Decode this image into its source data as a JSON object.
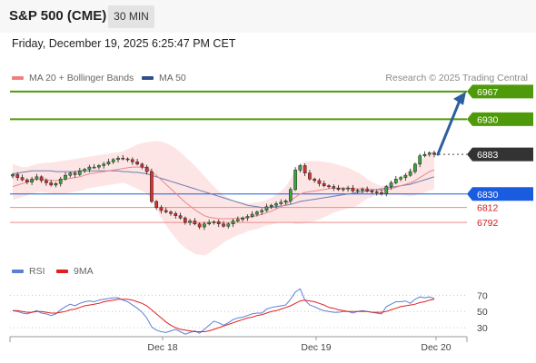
{
  "header": {
    "title": "S&P 500 (CME)",
    "timeframe": "30 MIN"
  },
  "datetime": "Friday, December 19, 2025 6:25:47 PM CET",
  "legend": [
    {
      "label": "MA 20 + Bollinger Bands",
      "color": "#f08080"
    },
    {
      "label": "MA 50",
      "color": "#2e4f8c"
    }
  ],
  "credit": "Research © 2025 Trading Central",
  "rsi_legend": [
    {
      "label": "RSI",
      "color": "#5b7fd6"
    },
    {
      "label": "9MA",
      "color": "#e02020"
    }
  ],
  "colors": {
    "resistance": "#4f9a0a",
    "support": "#1a5ce0",
    "support_line": "#ee8b8b",
    "current": "#333333",
    "up": "#3aa53a",
    "down": "#d93030",
    "arrow": "#2d5fa0"
  },
  "chart_data": [
    {
      "type": "candlestick",
      "title": "S&P 500 (CME)",
      "timeframe": "30 MIN",
      "x_ticks": [
        "Dec 18",
        "Dec 19",
        "Dec 20"
      ],
      "ylim": [
        6740,
        6985
      ],
      "price_levels": [
        {
          "value": 6967,
          "label": "6967",
          "kind": "resistance"
        },
        {
          "value": 6930,
          "label": "6930",
          "kind": "resistance"
        },
        {
          "value": 6883,
          "label": "6883",
          "kind": "current"
        },
        {
          "value": 6830,
          "label": "6830",
          "kind": "pivot"
        },
        {
          "value": 6812,
          "label": "6812",
          "kind": "support"
        },
        {
          "value": 6792,
          "label": "6792",
          "kind": "support"
        }
      ],
      "close": [
        6856,
        6852,
        6849,
        6846,
        6850,
        6853,
        6848,
        6845,
        6842,
        6844,
        6850,
        6855,
        6858,
        6856,
        6861,
        6863,
        6866,
        6866,
        6868,
        6870,
        6873,
        6876,
        6878,
        6877,
        6876,
        6873,
        6870,
        6866,
        6860,
        6820,
        6812,
        6808,
        6806,
        6804,
        6801,
        6798,
        6792,
        6794,
        6790,
        6786,
        6790,
        6792,
        6793,
        6790,
        6787,
        6790,
        6794,
        6796,
        6798,
        6800,
        6803,
        6806,
        6808,
        6813,
        6815,
        6817,
        6819,
        6821,
        6836,
        6862,
        6868,
        6858,
        6850,
        6848,
        6844,
        6841,
        6840,
        6838,
        6836,
        6837,
        6838,
        6834,
        6835,
        6836,
        6834,
        6833,
        6832,
        6830,
        6840,
        6845,
        6850,
        6852,
        6855,
        6860,
        6870,
        6881,
        6883,
        6885,
        6883
      ],
      "ma20": [
        6840,
        6842,
        6844,
        6846,
        6848,
        6850,
        6850,
        6849,
        6848,
        6848,
        6849,
        6850,
        6851,
        6852,
        6853,
        6855,
        6857,
        6858,
        6859,
        6860,
        6861,
        6862,
        6863,
        6864,
        6865,
        6866,
        6866,
        6866,
        6865,
        6860,
        6855,
        6849,
        6843,
        6837,
        6831,
        6825,
        6819,
        6814,
        6809,
        6805,
        6801,
        6799,
        6798,
        6797,
        6797,
        6797,
        6797,
        6798,
        6798,
        6799,
        6800,
        6801,
        6803,
        6805,
        6807,
        6810,
        6813,
        6816,
        6821,
        6826,
        6830,
        6832,
        6833,
        6834,
        6835,
        6836,
        6837,
        6838,
        6838,
        6838,
        6838,
        6837,
        6837,
        6837,
        6837,
        6836,
        6836,
        6835,
        6836,
        6837,
        6839,
        6841,
        6843,
        6845,
        6848,
        6852,
        6856,
        6860,
        6862
      ],
      "ma50": [
        6857,
        6858,
        6859,
        6860,
        6861,
        6861,
        6861,
        6861,
        6861,
        6860,
        6860,
        6860,
        6860,
        6860,
        6861,
        6861,
        6861,
        6861,
        6861,
        6861,
        6861,
        6861,
        6861,
        6860,
        6860,
        6859,
        6859,
        6858,
        6857,
        6855,
        6853,
        6851,
        6849,
        6847,
        6845,
        6843,
        6841,
        6839,
        6837,
        6835,
        6833,
        6831,
        6829,
        6827,
        6825,
        6823,
        6821,
        6819,
        6817,
        6815,
        6814,
        6813,
        6812,
        6812,
        6812,
        6813,
        6814,
        6815,
        6816,
        6818,
        6820,
        6821,
        6822,
        6823,
        6824,
        6825,
        6826,
        6827,
        6828,
        6829,
        6830,
        6831,
        6832,
        6833,
        6834,
        6835,
        6836,
        6837,
        6838,
        6839,
        6840,
        6841,
        6842,
        6843,
        6845,
        6847,
        6849,
        6851,
        6853
      ],
      "bb_upper": [
        6870,
        6868,
        6866,
        6866,
        6868,
        6870,
        6871,
        6872,
        6872,
        6873,
        6874,
        6875,
        6876,
        6877,
        6878,
        6879,
        6880,
        6881,
        6882,
        6883,
        6884,
        6885,
        6886,
        6887,
        6890,
        6893,
        6896,
        6898,
        6899,
        6900,
        6901,
        6900,
        6898,
        6895,
        6891,
        6886,
        6880,
        6874,
        6868,
        6861,
        6854,
        6847,
        6840,
        6834,
        6829,
        6825,
        6822,
        6820,
        6819,
        6818,
        6818,
        6819,
        6820,
        6822,
        6825,
        6829,
        6834,
        6840,
        6850,
        6862,
        6870,
        6873,
        6874,
        6874,
        6874,
        6873,
        6872,
        6871,
        6869,
        6867,
        6865,
        6862,
        6859,
        6855,
        6850,
        6846,
        6843,
        6841,
        6842,
        6845,
        6849,
        6853,
        6858,
        6863,
        6868,
        6874,
        6880,
        6885,
        6888
      ],
      "bb_lower": [
        6822,
        6824,
        6826,
        6828,
        6830,
        6832,
        6833,
        6832,
        6831,
        6830,
        6830,
        6831,
        6832,
        6833,
        6834,
        6836,
        6838,
        6839,
        6840,
        6841,
        6842,
        6843,
        6844,
        6845,
        6843,
        6840,
        6837,
        6834,
        6831,
        6821,
        6809,
        6798,
        6788,
        6779,
        6771,
        6764,
        6758,
        6754,
        6750,
        6749,
        6748,
        6751,
        6756,
        6760,
        6765,
        6769,
        6772,
        6775,
        6777,
        6780,
        6782,
        6783,
        6786,
        6788,
        6789,
        6791,
        6792,
        6792,
        6792,
        6790,
        6790,
        6791,
        6792,
        6794,
        6796,
        6799,
        6802,
        6805,
        6807,
        6809,
        6811,
        6812,
        6815,
        6819,
        6824,
        6826,
        6829,
        6829,
        6830,
        6829,
        6829,
        6829,
        6828,
        6827,
        6828,
        6830,
        6832,
        6835,
        6836
      ]
    },
    {
      "type": "line",
      "title": "",
      "ylim": [
        20,
        85
      ],
      "y_ticks": [
        30,
        50,
        70
      ],
      "series": [
        {
          "name": "RSI",
          "values": [
            51,
            50,
            48,
            47,
            49,
            51,
            48,
            47,
            45,
            47,
            52,
            56,
            59,
            57,
            60,
            62,
            63,
            62,
            64,
            65,
            66,
            67,
            67,
            64,
            62,
            58,
            54,
            49,
            42,
            31,
            27,
            25,
            24,
            26,
            28,
            25,
            22,
            24,
            26,
            23,
            28,
            33,
            38,
            36,
            33,
            36,
            40,
            42,
            43,
            45,
            47,
            48,
            48,
            53,
            55,
            56,
            57,
            58,
            65,
            74,
            78,
            64,
            58,
            56,
            53,
            51,
            50,
            49,
            49,
            50,
            50,
            48,
            50,
            51,
            50,
            49,
            48,
            47,
            56,
            59,
            62,
            62,
            63,
            60,
            65,
            68,
            67,
            68,
            66
          ]
        },
        {
          "name": "9MA",
          "values": [
            51,
            51,
            50,
            49,
            49,
            50,
            50,
            49,
            48,
            48,
            49,
            50,
            52,
            53,
            55,
            57,
            58,
            59,
            60,
            62,
            63,
            64,
            65,
            65,
            65,
            64,
            62,
            60,
            57,
            52,
            47,
            42,
            37,
            33,
            30,
            28,
            27,
            26,
            25,
            25,
            25,
            26,
            28,
            30,
            32,
            34,
            36,
            38,
            40,
            42,
            43,
            45,
            46,
            48,
            50,
            51,
            53,
            55,
            57,
            60,
            63,
            64,
            63,
            62,
            60,
            58,
            55,
            54,
            52,
            51,
            50,
            50,
            50,
            50,
            50,
            49,
            49,
            49,
            50,
            52,
            54,
            56,
            57,
            58,
            59,
            61,
            62,
            64,
            65
          ]
        }
      ]
    }
  ]
}
